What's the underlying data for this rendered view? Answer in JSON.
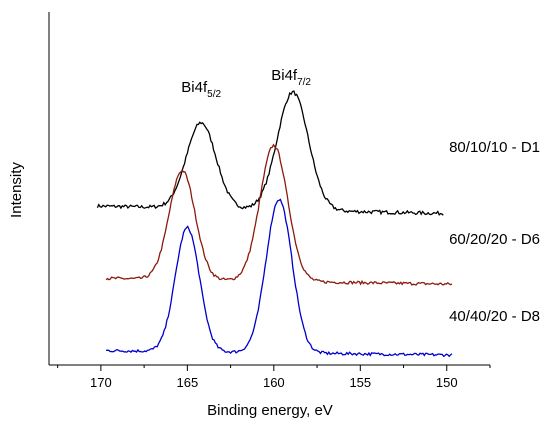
{
  "chart_data": {
    "type": "line",
    "title": "",
    "xlabel": "Binding energy, eV",
    "ylabel": "Intensity",
    "xlim": [
      173,
      147.5
    ],
    "x_reversed": true,
    "x_ticks": [
      170,
      165,
      160,
      155,
      150
    ],
    "x_tick_labels": [
      "170",
      "165",
      "160",
      "155",
      "150"
    ],
    "grid": false,
    "legend": "none",
    "peak_labels": [
      {
        "base": "Bi4f",
        "sub": "5/2",
        "x": 164.2
      },
      {
        "base": "Bi4f",
        "sub": "7/2",
        "x": 159.0
      }
    ],
    "series": [
      {
        "label": "80/10/10 - D1",
        "color": "#000000",
        "x_range": [
          170.2,
          150.2
        ],
        "baseline": 0.48,
        "tilt": 0.025,
        "noise": 0.006,
        "peaks": [
          {
            "center": 164.2,
            "height": 0.29,
            "width": 0.85
          },
          {
            "center": 158.9,
            "height": 0.4,
            "width": 0.9
          }
        ]
      },
      {
        "label": "60/20/20 - D6",
        "color": "#8b1a0c",
        "x_range": [
          169.7,
          149.7
        ],
        "baseline": 0.24,
        "tilt": 0.02,
        "noise": 0.005,
        "peaks": [
          {
            "center": 165.3,
            "height": 0.37,
            "width": 0.75
          },
          {
            "center": 160.0,
            "height": 0.46,
            "width": 0.8
          }
        ]
      },
      {
        "label": "40/40/20 - D8",
        "color": "#0000cc",
        "x_range": [
          169.7,
          149.7
        ],
        "baseline": 0.0,
        "tilt": 0.015,
        "noise": 0.005,
        "peaks": [
          {
            "center": 165.0,
            "height": 0.42,
            "width": 0.7
          },
          {
            "center": 159.7,
            "height": 0.52,
            "width": 0.75
          }
        ]
      }
    ]
  }
}
